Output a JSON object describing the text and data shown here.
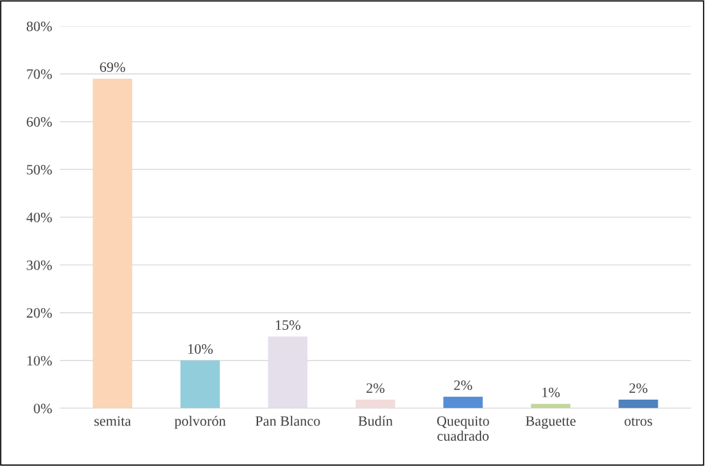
{
  "chart_data": {
    "type": "bar",
    "categories": [
      "semita",
      "polvorón",
      "Pan Blanco",
      "Budín",
      "Quequito\ncuadrado",
      "Baguette",
      "otros"
    ],
    "values": [
      69,
      10,
      15,
      1.8,
      2.4,
      0.9,
      1.8
    ],
    "value_labels": [
      "69%",
      "10%",
      "15%",
      "2%",
      "2%",
      "1%",
      "2%"
    ],
    "colors": [
      "#fbd5b5",
      "#92cddc",
      "#e5dfec",
      "#f2dcdb",
      "#558ed5",
      "#c3d69b",
      "#4f81bd"
    ],
    "ylim": [
      0,
      80
    ],
    "yticks": [
      {
        "value": 0,
        "label": "0%"
      },
      {
        "value": 10,
        "label": "10%"
      },
      {
        "value": 20,
        "label": "20%"
      },
      {
        "value": 30,
        "label": "30%"
      },
      {
        "value": 40,
        "label": "40%"
      },
      {
        "value": 50,
        "label": "50%"
      },
      {
        "value": 60,
        "label": "60%"
      },
      {
        "value": 70,
        "label": "70%"
      },
      {
        "value": 80,
        "label": "80%"
      }
    ],
    "grid": "y",
    "legend": false
  }
}
